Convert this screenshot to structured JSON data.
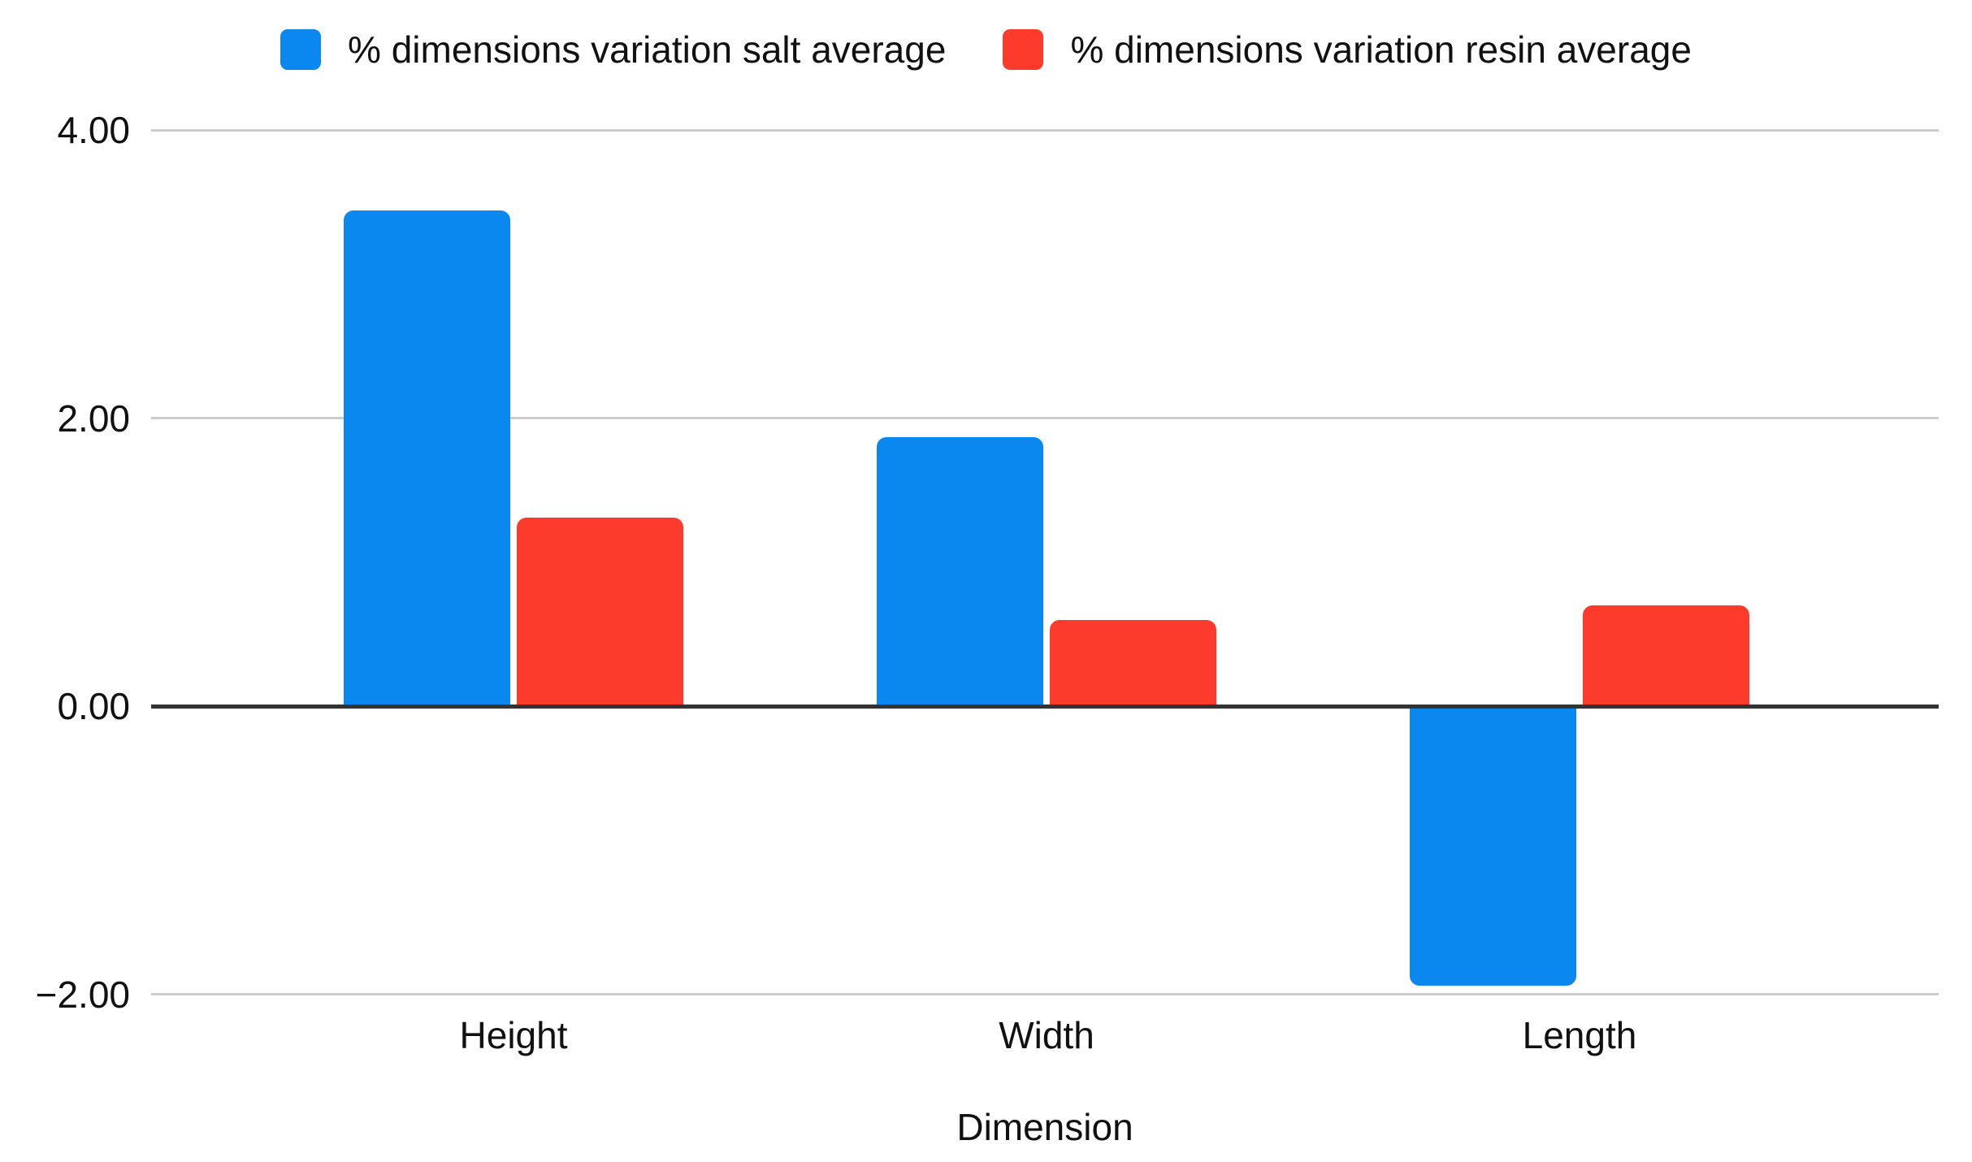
{
  "chart_data": {
    "type": "bar",
    "title": "",
    "categories": [
      "Height",
      "Width",
      "Length"
    ],
    "series": [
      {
        "name": "% dimensions variation salt average",
        "color": "#0b87f0",
        "values": [
          3.44,
          1.87,
          -1.94
        ]
      },
      {
        "name": "% dimensions variation resin average",
        "color": "#fc3b2d",
        "values": [
          1.31,
          0.6,
          0.7
        ]
      }
    ],
    "xlabel": "Dimension",
    "ylabel": "",
    "y_ticks": [
      {
        "value": 4,
        "label": "4.00"
      },
      {
        "value": 2,
        "label": "2.00"
      },
      {
        "value": 0,
        "label": "0.00"
      },
      {
        "value": -2,
        "label": "−2.00"
      }
    ],
    "ylim": [
      -2.4,
      4.4
    ],
    "grid": true,
    "legend_position": "top",
    "colors": {
      "gridline": "#cccccc",
      "zero_axis": "#333333",
      "text": "#111111",
      "background": "#ffffff"
    }
  }
}
